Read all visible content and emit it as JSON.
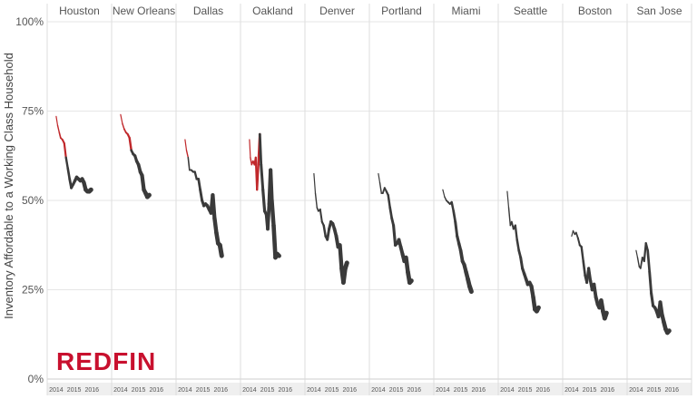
{
  "chart_data": {
    "type": "line",
    "ylabel": "Inventory Affordable to a Working Class Household",
    "yticks": [
      "0%",
      "25%",
      "50%",
      "75%",
      "100%"
    ],
    "ylim": [
      0,
      100
    ],
    "xlim": [
      2013.7,
      2016.9
    ],
    "xticks": [
      "2014",
      "2015",
      "2016"
    ],
    "colors": {
      "early": "#c0282b",
      "main": "#3a3a3a",
      "grid": "#e6e6e6",
      "axis_band": "#efefef"
    },
    "watermark": "REDFIN",
    "panels": [
      {
        "name": "Houston",
        "points": [
          [
            2014.0,
            73.5
          ],
          [
            2014.08,
            71
          ],
          [
            2014.17,
            69
          ],
          [
            2014.25,
            67.5
          ],
          [
            2014.35,
            67
          ],
          [
            2014.45,
            66
          ],
          [
            2014.55,
            62
          ],
          [
            2014.65,
            59
          ],
          [
            2014.75,
            56
          ],
          [
            2014.85,
            53.5
          ],
          [
            2014.95,
            54.5
          ],
          [
            2015.05,
            55.5
          ],
          [
            2015.15,
            56.5
          ],
          [
            2015.25,
            56
          ],
          [
            2015.35,
            55.5
          ],
          [
            2015.45,
            56
          ],
          [
            2015.55,
            55
          ],
          [
            2015.65,
            53
          ],
          [
            2015.75,
            52.5
          ],
          [
            2015.85,
            52.5
          ],
          [
            2015.95,
            53
          ]
        ],
        "early_end": 6
      },
      {
        "name": "New Orleans",
        "points": [
          [
            2014.0,
            74
          ],
          [
            2014.1,
            71.5
          ],
          [
            2014.2,
            70
          ],
          [
            2014.3,
            69
          ],
          [
            2014.4,
            68.5
          ],
          [
            2014.5,
            67.5
          ],
          [
            2014.6,
            64
          ],
          [
            2014.7,
            63
          ],
          [
            2014.8,
            62.5
          ],
          [
            2014.9,
            61
          ],
          [
            2015.0,
            60
          ],
          [
            2015.1,
            58
          ],
          [
            2015.2,
            57
          ],
          [
            2015.3,
            53
          ],
          [
            2015.4,
            52
          ],
          [
            2015.5,
            51
          ],
          [
            2015.6,
            51.5
          ]
        ],
        "early_end": 6
      },
      {
        "name": "Dallas",
        "points": [
          [
            2014.0,
            67
          ],
          [
            2014.08,
            64
          ],
          [
            2014.17,
            62
          ],
          [
            2014.25,
            58.5
          ],
          [
            2014.35,
            58.5
          ],
          [
            2014.45,
            58
          ],
          [
            2014.55,
            58
          ],
          [
            2014.65,
            56
          ],
          [
            2014.75,
            56
          ],
          [
            2014.85,
            53
          ],
          [
            2014.95,
            50
          ],
          [
            2015.05,
            48.5
          ],
          [
            2015.15,
            49
          ],
          [
            2015.25,
            48.5
          ],
          [
            2015.35,
            47.5
          ],
          [
            2015.45,
            46.5
          ],
          [
            2015.55,
            51.5
          ],
          [
            2015.65,
            45
          ],
          [
            2015.75,
            41
          ],
          [
            2015.85,
            38
          ],
          [
            2015.95,
            37.5
          ],
          [
            2016.05,
            34.5
          ]
        ],
        "early_end": 2
      },
      {
        "name": "Oakland",
        "points": [
          [
            2014.0,
            67
          ],
          [
            2014.05,
            62
          ],
          [
            2014.12,
            60
          ],
          [
            2014.2,
            61
          ],
          [
            2014.28,
            60
          ],
          [
            2014.35,
            62
          ],
          [
            2014.42,
            53
          ],
          [
            2014.5,
            60
          ],
          [
            2014.58,
            68.5
          ],
          [
            2014.65,
            60
          ],
          [
            2014.75,
            53
          ],
          [
            2014.85,
            47
          ],
          [
            2014.95,
            46
          ],
          [
            2015.02,
            42
          ],
          [
            2015.1,
            49
          ],
          [
            2015.18,
            58.5
          ],
          [
            2015.25,
            50
          ],
          [
            2015.35,
            43
          ],
          [
            2015.45,
            34
          ],
          [
            2015.55,
            35
          ],
          [
            2015.65,
            34.5
          ]
        ],
        "early_end": 8
      },
      {
        "name": "Denver",
        "points": [
          [
            2014.0,
            57.5
          ],
          [
            2014.08,
            52
          ],
          [
            2014.17,
            48
          ],
          [
            2014.25,
            47
          ],
          [
            2014.35,
            47.5
          ],
          [
            2014.45,
            44
          ],
          [
            2014.55,
            43
          ],
          [
            2014.65,
            40
          ],
          [
            2014.75,
            39
          ],
          [
            2014.85,
            42
          ],
          [
            2014.95,
            44
          ],
          [
            2015.05,
            43.5
          ],
          [
            2015.15,
            42
          ],
          [
            2015.25,
            40
          ],
          [
            2015.35,
            37
          ],
          [
            2015.45,
            37.5
          ],
          [
            2015.55,
            31
          ],
          [
            2015.65,
            27
          ],
          [
            2015.75,
            31
          ],
          [
            2015.85,
            32.5
          ]
        ],
        "early_end": 0
      },
      {
        "name": "Portland",
        "points": [
          [
            2014.0,
            57.5
          ],
          [
            2014.08,
            55
          ],
          [
            2014.17,
            52
          ],
          [
            2014.25,
            52
          ],
          [
            2014.35,
            53.5
          ],
          [
            2014.45,
            52.5
          ],
          [
            2014.55,
            51.5
          ],
          [
            2014.65,
            48
          ],
          [
            2014.75,
            45
          ],
          [
            2014.85,
            43
          ],
          [
            2014.95,
            37.5
          ],
          [
            2015.05,
            38
          ],
          [
            2015.15,
            39
          ],
          [
            2015.25,
            37
          ],
          [
            2015.35,
            35
          ],
          [
            2015.45,
            33
          ],
          [
            2015.55,
            34
          ],
          [
            2015.65,
            30
          ],
          [
            2015.75,
            27
          ],
          [
            2015.85,
            27.5
          ]
        ],
        "early_end": 0
      },
      {
        "name": "Miami",
        "points": [
          [
            2014.0,
            53
          ],
          [
            2014.1,
            51
          ],
          [
            2014.2,
            50
          ],
          [
            2014.3,
            49.5
          ],
          [
            2014.4,
            49
          ],
          [
            2014.5,
            49.5
          ],
          [
            2014.6,
            47
          ],
          [
            2014.7,
            44
          ],
          [
            2014.8,
            40
          ],
          [
            2014.9,
            38
          ],
          [
            2015.0,
            36
          ],
          [
            2015.1,
            33
          ],
          [
            2015.2,
            32
          ],
          [
            2015.3,
            30
          ],
          [
            2015.4,
            28
          ],
          [
            2015.5,
            26
          ],
          [
            2015.6,
            24.5
          ]
        ],
        "early_end": 0
      },
      {
        "name": "Seattle",
        "points": [
          [
            2014.0,
            52.5
          ],
          [
            2014.08,
            48
          ],
          [
            2014.17,
            43
          ],
          [
            2014.25,
            44
          ],
          [
            2014.35,
            42
          ],
          [
            2014.45,
            43
          ],
          [
            2014.55,
            39
          ],
          [
            2014.65,
            36
          ],
          [
            2014.75,
            34
          ],
          [
            2014.85,
            31
          ],
          [
            2014.95,
            29.5
          ],
          [
            2015.05,
            28
          ],
          [
            2015.15,
            26.5
          ],
          [
            2015.25,
            27
          ],
          [
            2015.35,
            26
          ],
          [
            2015.45,
            23
          ],
          [
            2015.55,
            19.5
          ],
          [
            2015.65,
            19
          ],
          [
            2015.75,
            20
          ]
        ],
        "early_end": 0
      },
      {
        "name": "Boston",
        "points": [
          [
            2014.0,
            40
          ],
          [
            2014.08,
            41.5
          ],
          [
            2014.17,
            40.5
          ],
          [
            2014.25,
            41
          ],
          [
            2014.35,
            39.5
          ],
          [
            2014.45,
            37.5
          ],
          [
            2014.55,
            37
          ],
          [
            2014.65,
            33
          ],
          [
            2014.75,
            29
          ],
          [
            2014.85,
            27
          ],
          [
            2014.95,
            31
          ],
          [
            2015.05,
            27.5
          ],
          [
            2015.15,
            25
          ],
          [
            2015.25,
            26.5
          ],
          [
            2015.35,
            23
          ],
          [
            2015.45,
            21
          ],
          [
            2015.55,
            20
          ],
          [
            2015.65,
            22
          ],
          [
            2015.75,
            19
          ],
          [
            2015.85,
            17
          ],
          [
            2015.95,
            18.5
          ]
        ],
        "early_end": 0
      },
      {
        "name": "San Jose",
        "points": [
          [
            2014.0,
            36
          ],
          [
            2014.08,
            34
          ],
          [
            2014.17,
            31.5
          ],
          [
            2014.25,
            31
          ],
          [
            2014.35,
            34
          ],
          [
            2014.45,
            33
          ],
          [
            2014.55,
            38
          ],
          [
            2014.65,
            36
          ],
          [
            2014.75,
            30
          ],
          [
            2014.85,
            24
          ],
          [
            2014.95,
            20.5
          ],
          [
            2015.05,
            20
          ],
          [
            2015.15,
            19
          ],
          [
            2015.25,
            17.5
          ],
          [
            2015.35,
            21.5
          ],
          [
            2015.45,
            18
          ],
          [
            2015.55,
            16
          ],
          [
            2015.65,
            14
          ],
          [
            2015.75,
            13
          ],
          [
            2015.85,
            13.5
          ]
        ],
        "early_end": 0
      }
    ]
  }
}
